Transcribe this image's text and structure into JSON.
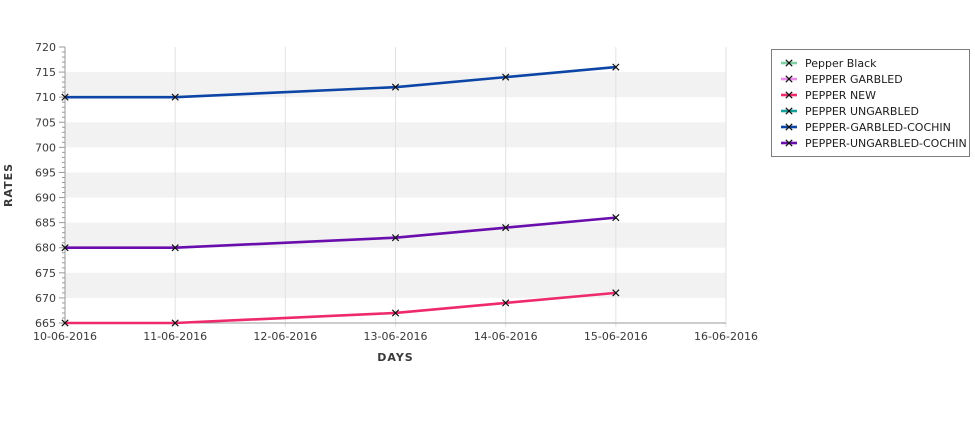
{
  "chart_data": {
    "type": "line",
    "title": "",
    "xlabel": "DAYS",
    "ylabel": "RATES",
    "x_tick_labels": [
      "10-06-2016",
      "11-06-2016",
      "12-06-2016",
      "13-06-2016",
      "14-06-2016",
      "15-06-2016",
      "16-06-2016"
    ],
    "y_ticks": [
      665,
      670,
      675,
      680,
      685,
      690,
      695,
      700,
      705,
      710,
      715,
      720
    ],
    "ylim": [
      665,
      720
    ],
    "y_minor_step": 1,
    "grid": {
      "vertical_gridlines": true,
      "alternating_horizontal_bands": true
    },
    "legend_position": "outside-right",
    "marker": "x",
    "series": [
      {
        "name": "Pepper Black",
        "color": "#7FD0A5",
        "points": []
      },
      {
        "name": "PEPPER GARBLED",
        "color": "#E98BE9",
        "points": []
      },
      {
        "name": "PEPPER NEW",
        "color": "#EE2A6D",
        "points": [
          [
            "10-06-2016",
            665
          ],
          [
            "11-06-2016",
            665
          ],
          [
            "13-06-2016",
            667
          ],
          [
            "14-06-2016",
            669
          ],
          [
            "15-06-2016",
            671
          ]
        ]
      },
      {
        "name": "PEPPER UNGARBLED",
        "color": "#17A09B",
        "points": []
      },
      {
        "name": "PEPPER-GARBLED-COCHIN",
        "color": "#0D45A6",
        "points": [
          [
            "10-06-2016",
            710
          ],
          [
            "11-06-2016",
            710
          ],
          [
            "13-06-2016",
            712
          ],
          [
            "14-06-2016",
            714
          ],
          [
            "15-06-2016",
            716
          ]
        ]
      },
      {
        "name": "PEPPER-UNGARBLED-COCHIN",
        "color": "#6A0DAD",
        "points": [
          [
            "10-06-2016",
            680
          ],
          [
            "11-06-2016",
            680
          ],
          [
            "13-06-2016",
            682
          ],
          [
            "14-06-2016",
            684
          ],
          [
            "15-06-2016",
            686
          ]
        ]
      }
    ],
    "colors": {
      "band": "#f2f2f2",
      "gridline": "#e2e2e2",
      "axis": "#9a9a9a",
      "tick_text": "#3a3a3a",
      "marker": "#111111"
    }
  }
}
